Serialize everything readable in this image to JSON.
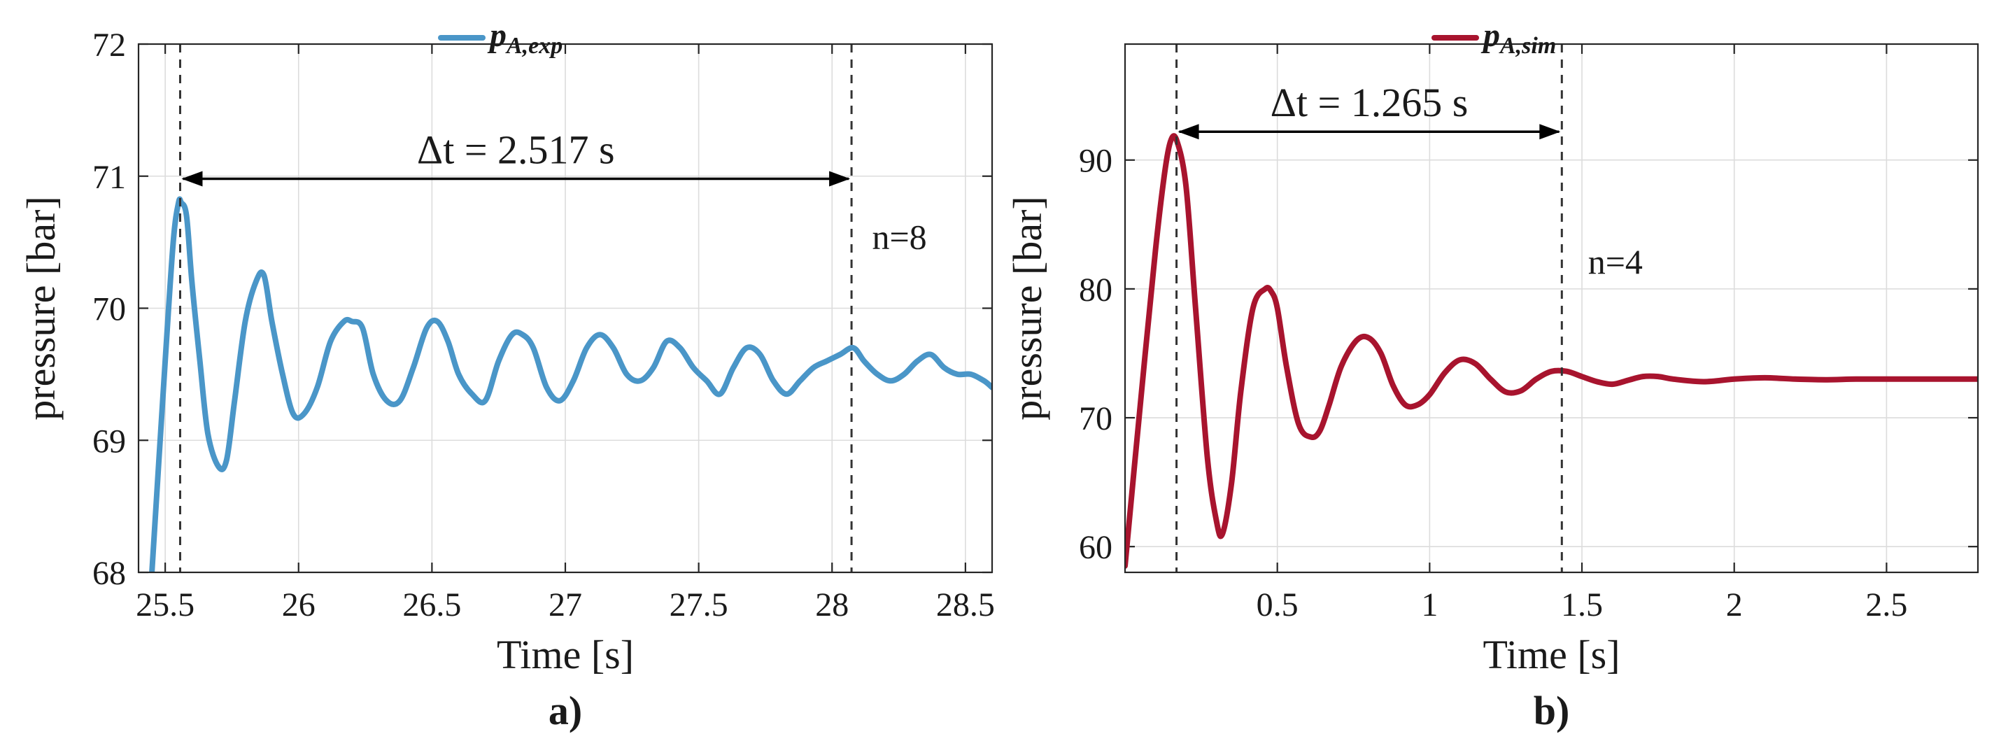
{
  "chart_data": [
    {
      "type": "line",
      "panel_label": "a)",
      "xlabel": "Time [s]",
      "ylabel": "pressure [bar]",
      "xlim": [
        25.4,
        28.6
      ],
      "ylim": [
        68,
        72
      ],
      "xticks": [
        "25.5",
        "26",
        "26.5",
        "27",
        "27.5",
        "28",
        "28.5"
      ],
      "yticks": [
        "68",
        "69",
        "70",
        "71",
        "72"
      ],
      "grid": true,
      "legend_position": "top-center",
      "series": [
        {
          "name": "p_{A,exp}",
          "color": "#4a96c8",
          "x": [
            25.45,
            25.5,
            25.53,
            25.55,
            25.56,
            25.58,
            25.6,
            25.63,
            25.66,
            25.7,
            25.73,
            25.76,
            25.8,
            25.84,
            25.87,
            25.9,
            25.94,
            25.98,
            26.02,
            26.07,
            26.12,
            26.17,
            26.2,
            26.24,
            26.28,
            26.33,
            26.38,
            26.43,
            26.48,
            26.52,
            26.56,
            26.6,
            26.65,
            26.7,
            26.75,
            26.8,
            26.84,
            26.88,
            26.93,
            26.98,
            27.03,
            27.08,
            27.13,
            27.18,
            27.23,
            27.28,
            27.33,
            27.38,
            27.43,
            27.48,
            27.53,
            27.58,
            27.63,
            27.68,
            27.73,
            27.78,
            27.83,
            27.88,
            27.93,
            27.98,
            28.03,
            28.08,
            28.12,
            28.17,
            28.22,
            28.27,
            28.32,
            28.37,
            28.42,
            28.47,
            28.52,
            28.57,
            28.6
          ],
          "y": [
            68.0,
            69.6,
            70.5,
            70.8,
            70.8,
            70.7,
            70.2,
            69.6,
            69.05,
            68.8,
            68.85,
            69.3,
            69.9,
            70.2,
            70.25,
            69.9,
            69.5,
            69.2,
            69.2,
            69.4,
            69.75,
            69.9,
            69.9,
            69.85,
            69.5,
            69.3,
            69.3,
            69.55,
            69.85,
            69.9,
            69.75,
            69.5,
            69.35,
            69.3,
            69.6,
            69.8,
            69.8,
            69.7,
            69.4,
            69.3,
            69.45,
            69.7,
            69.8,
            69.7,
            69.5,
            69.45,
            69.55,
            69.75,
            69.7,
            69.55,
            69.45,
            69.35,
            69.55,
            69.7,
            69.65,
            69.45,
            69.35,
            69.45,
            69.55,
            69.6,
            69.65,
            69.7,
            69.6,
            69.5,
            69.45,
            69.5,
            69.6,
            69.65,
            69.55,
            69.5,
            69.5,
            69.45,
            69.4
          ]
        }
      ],
      "annotations": {
        "dt_label": "Δt = 2.517 s",
        "dt_start": 25.556,
        "dt_end": 28.073,
        "dt_y": 70.98,
        "n_label": "n=8",
        "n_x": 28.15,
        "n_y": 70.45
      }
    },
    {
      "type": "line",
      "panel_label": "b)",
      "xlabel": "Time [s]",
      "ylabel": "pressure [bar]",
      "xlim": [
        0,
        2.8
      ],
      "ylim": [
        58,
        99
      ],
      "xticks": [
        "0.5",
        "1",
        "1.5",
        "2",
        "2.5"
      ],
      "yticks": [
        "60",
        "70",
        "80",
        "90"
      ],
      "grid": true,
      "legend_position": "top-center",
      "series": [
        {
          "name": "p_{A,sim}",
          "color": "#a8142e",
          "x": [
            0,
            0.05,
            0.1,
            0.13,
            0.15,
            0.17,
            0.2,
            0.23,
            0.27,
            0.3,
            0.32,
            0.35,
            0.38,
            0.42,
            0.46,
            0.48,
            0.5,
            0.53,
            0.57,
            0.61,
            0.64,
            0.67,
            0.71,
            0.76,
            0.8,
            0.84,
            0.88,
            0.92,
            0.96,
            1.0,
            1.05,
            1.1,
            1.15,
            1.2,
            1.25,
            1.3,
            1.35,
            1.4,
            1.45,
            1.5,
            1.55,
            1.6,
            1.65,
            1.7,
            1.75,
            1.8,
            1.9,
            2.0,
            2.1,
            2.2,
            2.3,
            2.4,
            2.5,
            2.6,
            2.7,
            2.8
          ],
          "y": [
            58.5,
            71,
            83,
            89,
            91.5,
            91.5,
            88,
            79,
            67,
            62,
            61,
            65,
            72,
            78.5,
            80,
            79.8,
            78.5,
            74,
            69.5,
            68.5,
            69,
            71,
            74,
            76,
            76.2,
            75,
            72.5,
            71,
            71,
            71.8,
            73.5,
            74.5,
            74.2,
            73,
            72,
            72.1,
            73,
            73.6,
            73.6,
            73.2,
            72.8,
            72.6,
            72.9,
            73.2,
            73.2,
            73,
            72.8,
            73,
            73.1,
            73,
            72.95,
            73,
            73,
            73,
            73,
            73
          ]
        }
      ],
      "annotations": {
        "dt_label": "Δt = 1.265 s",
        "dt_start": 0.169,
        "dt_end": 1.434,
        "dt_y": 92.2,
        "n_label": "n=4",
        "n_x": 1.52,
        "n_y": 81.2
      }
    }
  ]
}
